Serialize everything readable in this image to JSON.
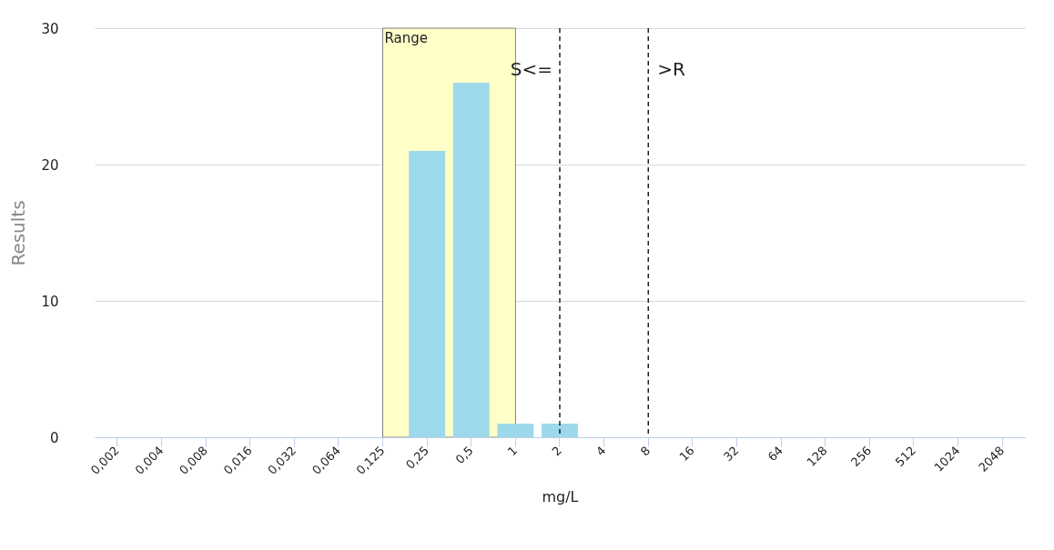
{
  "chart_data": {
    "type": "bar",
    "xlabel": "mg/L",
    "ylabel": "Results",
    "categories": [
      "0,002",
      "0,004",
      "0,008",
      "0,016",
      "0,032",
      "0,064",
      "0,125",
      "0,25",
      "0,5",
      "1",
      "2",
      "4",
      "8",
      "16",
      "32",
      "64",
      "128",
      "256",
      "512",
      "1024",
      "2048"
    ],
    "values": [
      0,
      0,
      0,
      0,
      0,
      0,
      0,
      21,
      26,
      1,
      1,
      0,
      0,
      0,
      0,
      0,
      0,
      0,
      0,
      0,
      0
    ],
    "color": "#9dd9ea",
    "ylim": [
      0,
      30
    ],
    "yticks": [
      0,
      10,
      20,
      30
    ],
    "grid": "y",
    "bands": [
      {
        "axis": "x",
        "from": "0,125",
        "to": "1",
        "label": "Range",
        "color": "#ffffc8"
      }
    ],
    "ref_lines": [
      {
        "axis": "x",
        "value": "2",
        "label": "S<=",
        "line_style": "dashed"
      },
      {
        "axis": "x",
        "value": "8",
        "label": ">R",
        "line_style": "dashed"
      }
    ]
  }
}
